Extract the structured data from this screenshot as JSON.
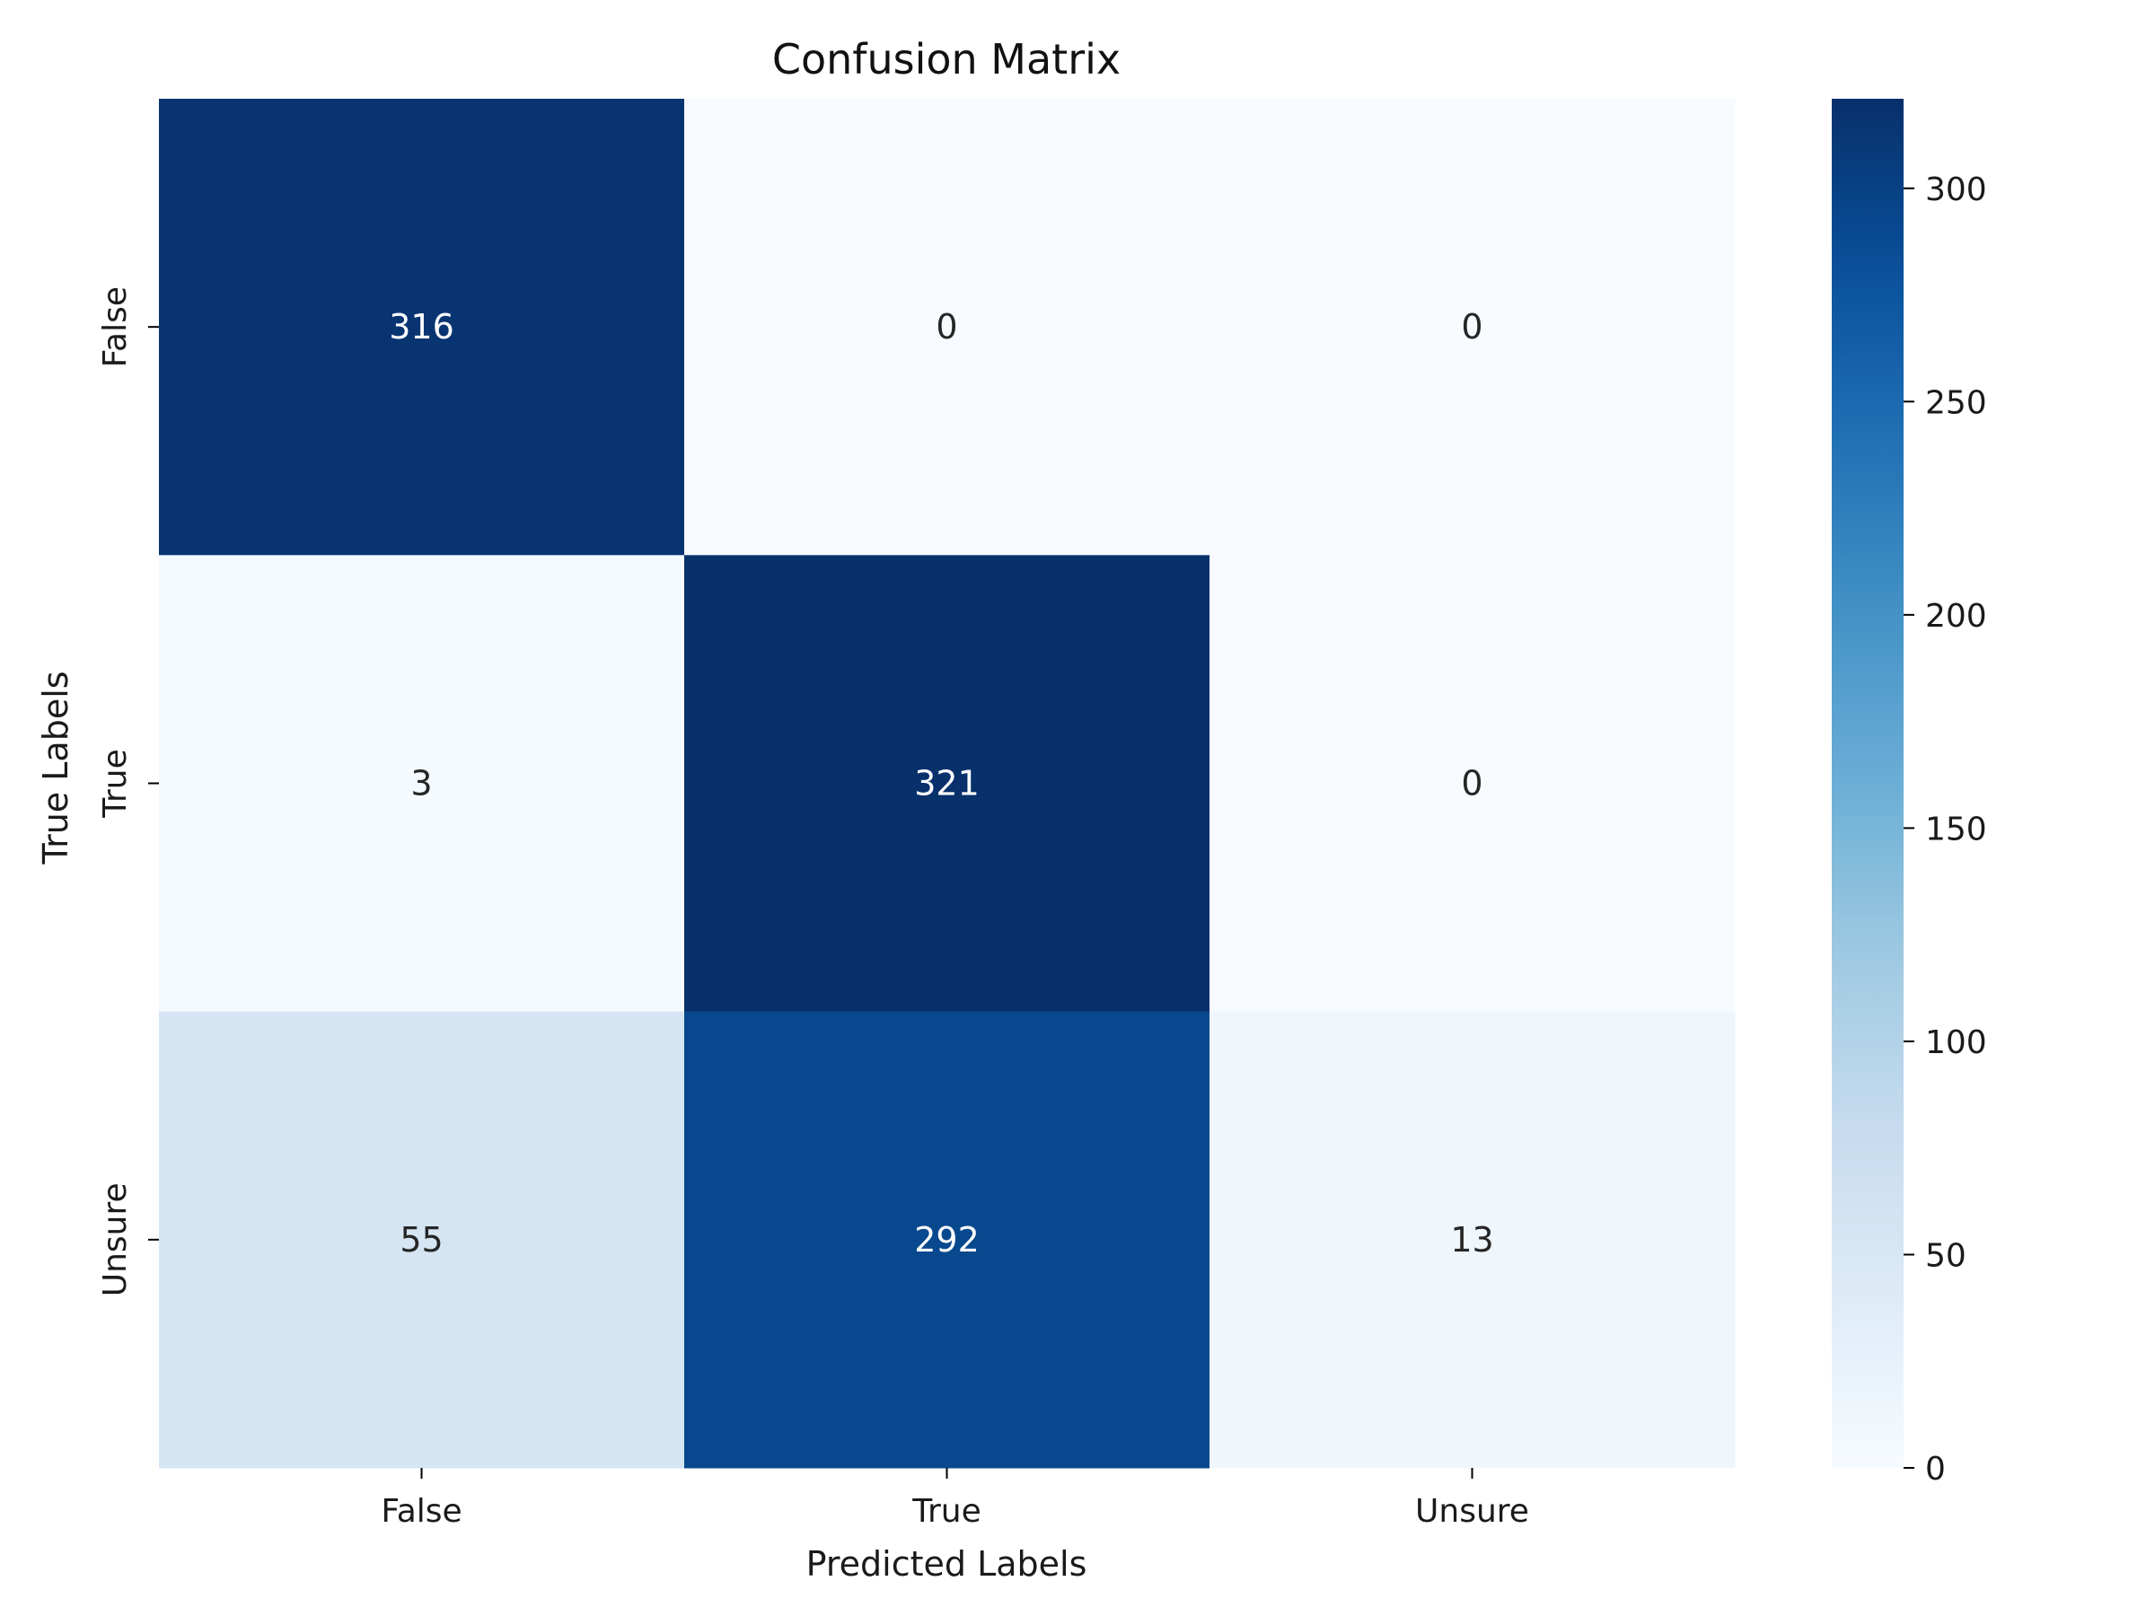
{
  "chart_data": {
    "type": "heatmap",
    "title": "Confusion Matrix",
    "xlabel": "Predicted Labels",
    "ylabel": "True Labels",
    "x_categories": [
      "False",
      "True",
      "Unsure"
    ],
    "y_categories": [
      "False",
      "True",
      "Unsure"
    ],
    "values": [
      [
        316,
        0,
        0
      ],
      [
        3,
        321,
        0
      ],
      [
        55,
        292,
        13
      ]
    ],
    "colormap": "Blues",
    "color_low": "#f7fbff",
    "color_high": "#08306b",
    "colorbar": {
      "range": [
        0,
        321
      ],
      "ticks": [
        0,
        50,
        100,
        150,
        200,
        250,
        300
      ],
      "tick_labels": [
        "0",
        "50",
        "100",
        "150",
        "200",
        "250",
        "300"
      ]
    }
  }
}
